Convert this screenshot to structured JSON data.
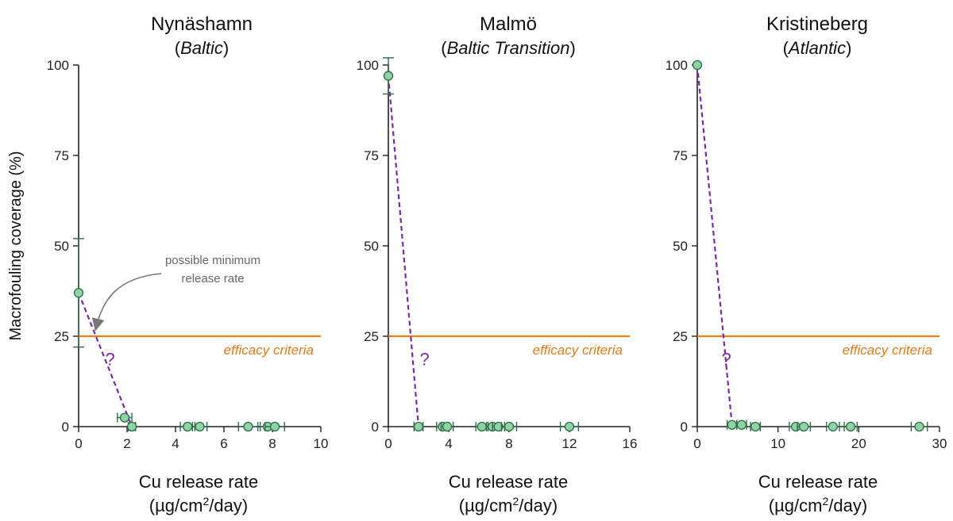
{
  "figure": {
    "y_axis_label": "Macrofouling coverage (%)",
    "x_axis_label_line1": "Cu release rate",
    "x_axis_label_line2_pre": "(µg/cm",
    "x_axis_label_line2_sup": "2",
    "x_axis_label_line2_post": "/day)",
    "threshold_label": "efficacy criteria",
    "uncertainty_marker": "?",
    "annotation_line1": "possible minimum",
    "annotation_line2": "release rate"
  },
  "colors": {
    "threshold": "#f07f1b",
    "marker_fill": "#8fd3a4",
    "marker_edge": "#2f6b4a",
    "error_bar": "#2f6b4a",
    "dashed_fit": "#7b2aa5",
    "annotation_arrow": "#777777"
  },
  "chart_data": [
    {
      "type": "scatter",
      "title": "Nynäshamn",
      "subtitle": "Baltic",
      "xlim": [
        0,
        10
      ],
      "xticks": [
        0,
        2,
        4,
        6,
        8,
        10
      ],
      "ylim": [
        0,
        100
      ],
      "yticks": [
        0,
        25,
        50,
        75,
        100
      ],
      "threshold": 25,
      "points": [
        {
          "x": 0,
          "y": 37,
          "yerr": 15
        },
        {
          "x": 1.9,
          "y": 2.5,
          "xerr": 0.3
        },
        {
          "x": 2.2,
          "y": 0,
          "xerr": 0.15
        },
        {
          "x": 4.5,
          "y": 0,
          "xerr": 0.3
        },
        {
          "x": 5.0,
          "y": 0,
          "xerr": 0.3
        },
        {
          "x": 7.0,
          "y": 0,
          "xerr": 0.4
        },
        {
          "x": 7.8,
          "y": 0,
          "xerr": 0.3
        },
        {
          "x": 8.1,
          "y": 0,
          "xerr": 0.4
        }
      ],
      "dashed_line": [
        [
          0,
          37
        ],
        [
          2.2,
          0
        ]
      ],
      "question_mark_at": [
        1.3,
        17
      ]
    },
    {
      "type": "scatter",
      "title": "Malmö",
      "subtitle": "Baltic Transition",
      "xlim": [
        0,
        16
      ],
      "xticks": [
        0,
        4,
        8,
        12,
        16
      ],
      "ylim": [
        0,
        100
      ],
      "yticks": [
        0,
        25,
        50,
        75,
        100
      ],
      "threshold": 25,
      "points": [
        {
          "x": 0,
          "y": 97,
          "yerr": 5
        },
        {
          "x": 2.0,
          "y": 0,
          "xerr": 0.3
        },
        {
          "x": 3.6,
          "y": 0,
          "xerr": 0.4
        },
        {
          "x": 3.9,
          "y": 0,
          "xerr": 0.4
        },
        {
          "x": 6.2,
          "y": 0,
          "xerr": 0.4
        },
        {
          "x": 6.9,
          "y": 0,
          "xerr": 0.4
        },
        {
          "x": 7.3,
          "y": 0,
          "xerr": 0.4
        },
        {
          "x": 8.0,
          "y": 0,
          "xerr": 0.5
        },
        {
          "x": 12.0,
          "y": 0,
          "xerr": 0.6
        }
      ],
      "dashed_line": [
        [
          0,
          97
        ],
        [
          2.0,
          0
        ]
      ],
      "question_mark_at": [
        2.4,
        17
      ]
    },
    {
      "type": "scatter",
      "title": "Kristineberg",
      "subtitle": "Atlantic",
      "xlim": [
        0,
        30
      ],
      "xticks": [
        0,
        10,
        20,
        30
      ],
      "ylim": [
        0,
        100
      ],
      "yticks": [
        0,
        25,
        50,
        75,
        100
      ],
      "threshold": 25,
      "points": [
        {
          "x": 0,
          "y": 100
        },
        {
          "x": 4.3,
          "y": 0.5,
          "xerr": 0.6
        },
        {
          "x": 5.5,
          "y": 0.5,
          "xerr": 0.6
        },
        {
          "x": 7.2,
          "y": 0,
          "xerr": 0.6
        },
        {
          "x": 12.2,
          "y": 0,
          "xerr": 0.8
        },
        {
          "x": 13.2,
          "y": 0,
          "xerr": 0.8
        },
        {
          "x": 16.8,
          "y": 0,
          "xerr": 0.8
        },
        {
          "x": 19.0,
          "y": 0,
          "xerr": 0.8
        },
        {
          "x": 27.5,
          "y": 0,
          "xerr": 1.0
        }
      ],
      "dashed_line": [
        [
          0,
          100
        ],
        [
          4.3,
          0.5
        ]
      ],
      "question_mark_at": [
        3.6,
        17
      ]
    }
  ]
}
